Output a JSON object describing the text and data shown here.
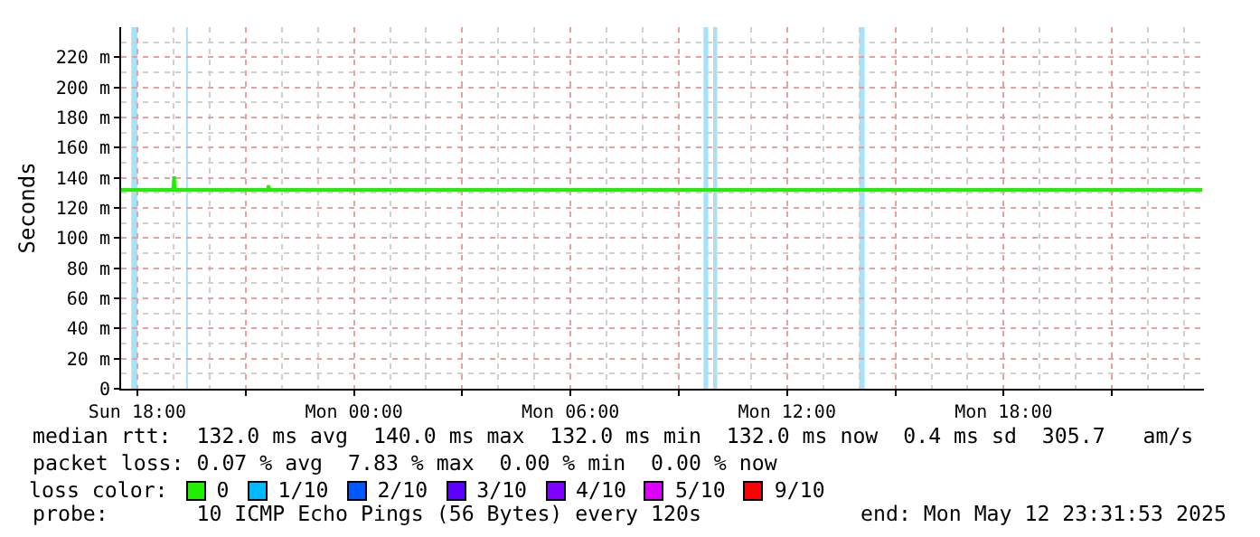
{
  "chart_data": {
    "type": "line",
    "ylabel": "Seconds",
    "x": [
      "2025-05-11T17:33",
      "2025-05-11T19:00",
      "2025-05-11T19:01",
      "2025-05-11T19:02",
      "2025-05-11T21:37",
      "2025-05-11T21:38",
      "2025-05-11T21:39",
      "2025-05-12T23:30"
    ],
    "series": [
      {
        "name": "0",
        "color": "#22ee00",
        "values": [
          132,
          132,
          141,
          132,
          132,
          135,
          132,
          132
        ]
      },
      {
        "name": "1/10",
        "color": "#00b8ff",
        "values": [
          null,
          null,
          null,
          null,
          null,
          null,
          null,
          null
        ]
      },
      {
        "name": "2/10",
        "color": "#0059ff",
        "values": [
          null,
          null,
          null,
          null,
          null,
          null,
          null,
          null
        ]
      },
      {
        "name": "3/10",
        "color": "#5e00ff",
        "values": [
          null,
          null,
          null,
          null,
          null,
          null,
          null,
          null
        ]
      },
      {
        "name": "4/10",
        "color": "#7e00ff",
        "values": [
          null,
          null,
          null,
          null,
          null,
          null,
          null,
          null
        ]
      },
      {
        "name": "5/10",
        "color": "#dd00ff",
        "values": [
          null,
          null,
          null,
          null,
          null,
          null,
          null,
          null
        ]
      },
      {
        "name": "9/10",
        "color": "#ff0000",
        "values": [
          null,
          null,
          null,
          null,
          null,
          null,
          null,
          null
        ]
      }
    ],
    "bands": [
      {
        "axis": "x",
        "from": "2025-05-11T17:50",
        "to": "2025-05-11T18:00",
        "color": "#a6e3fa"
      },
      {
        "axis": "x",
        "from": "2025-05-11T19:21",
        "to": "2025-05-11T19:24",
        "color": "#a6e3fa"
      },
      {
        "axis": "x",
        "from": "2025-05-12T09:41",
        "to": "2025-05-12T09:49",
        "color": "#a6e3fa"
      },
      {
        "axis": "x",
        "from": "2025-05-12T09:57",
        "to": "2025-05-12T10:04",
        "color": "#a6e3fa"
      },
      {
        "axis": "x",
        "from": "2025-05-12T14:00",
        "to": "2025-05-12T14:09",
        "color": "#a6e3fa"
      }
    ],
    "xlim": [
      "2025-05-11T17:33",
      "2025-05-12T23:33"
    ],
    "xticks": [
      {
        "value": "2025-05-11T18:00",
        "label": "Sun 18:00"
      },
      {
        "value": "2025-05-11T21:00",
        "label": null
      },
      {
        "value": "2025-05-12T00:00",
        "label": "Mon 00:00"
      },
      {
        "value": "2025-05-12T03:00",
        "label": null
      },
      {
        "value": "2025-05-12T06:00",
        "label": "Mon 06:00"
      },
      {
        "value": "2025-05-12T09:00",
        "label": null
      },
      {
        "value": "2025-05-12T12:00",
        "label": "Mon 12:00"
      },
      {
        "value": "2025-05-12T15:00",
        "label": null
      },
      {
        "value": "2025-05-12T18:00",
        "label": "Mon 18:00"
      },
      {
        "value": "2025-05-12T21:00",
        "label": null
      }
    ],
    "ylim": [
      0,
      240
    ],
    "yticks": [
      0,
      {
        "value": 20,
        "label": "20 m"
      },
      {
        "value": 40,
        "label": "40 m"
      },
      {
        "value": 60,
        "label": "60 m"
      },
      {
        "value": 80,
        "label": "80 m"
      },
      {
        "value": 100,
        "label": "100 m"
      },
      {
        "value": 120,
        "label": "120 m"
      },
      {
        "value": 140,
        "label": "140 m"
      },
      {
        "value": 160,
        "label": "160 m"
      },
      {
        "value": 180,
        "label": "180 m"
      },
      {
        "value": 200,
        "label": "200 m"
      },
      {
        "value": 220,
        "label": "220 m"
      }
    ],
    "grid": true,
    "legend": "bottom",
    "legend_title": "loss color:",
    "marker": "none",
    "line_style": "solid",
    "annotations": [
      "median rtt:  132.0 ms avg  140.0 ms max  132.0 ms min  132.0 ms now  0.4 ms sd  305.7   am/s",
      "packet loss: 0.07 % avg  7.83 % max  0.00 % min  0.00 % now",
      "probe:       10 ICMP Echo Pings (56 Bytes) every 120s",
      "end: Mon May 12 23:31:53 2025"
    ]
  }
}
